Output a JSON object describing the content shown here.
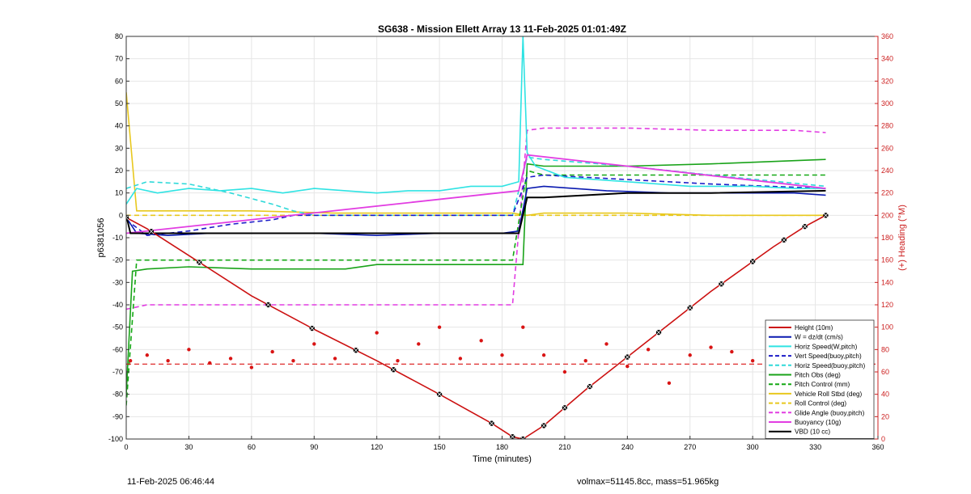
{
  "chart_data": {
    "type": "line",
    "title": "SG638 - Mission Ellett Array 13 11-Feb-2025 01:01:49Z",
    "xlabel": "Time (minutes)",
    "ylabel": "p6381056",
    "y2label": "(+) Heading (°M)",
    "xlim": [
      0,
      360
    ],
    "ylim": [
      -100,
      80
    ],
    "y2lim": [
      0,
      360
    ],
    "xticks": [
      0,
      30,
      60,
      90,
      120,
      150,
      180,
      210,
      240,
      270,
      300,
      330,
      360
    ],
    "yticks": [
      80,
      70,
      60,
      50,
      40,
      30,
      20,
      10,
      0,
      -10,
      -20,
      -30,
      -40,
      -50,
      -60,
      -70,
      -80,
      -90,
      -100
    ],
    "y2ticks": [
      360,
      340,
      320,
      300,
      280,
      260,
      240,
      220,
      200,
      180,
      160,
      140,
      120,
      100,
      80,
      60,
      40,
      20,
      0
    ],
    "grid": true,
    "legend_position": "bottom-right",
    "colors": {
      "height": "#cc1111",
      "w": "#0a1ab0",
      "horiz_speed_w": "#2fe3e3",
      "vert_speed": "#1c1cc8",
      "horiz_speed_buoy": "#2fd9d9",
      "pitch": "#19a319",
      "pitch_control": "#14a814",
      "roll": "#e8c81e",
      "roll_control": "#e8c81e",
      "glide_angle": "#e23de2",
      "buoyancy": "#e23de2",
      "vbd": "#000000",
      "heading": "#d91414"
    },
    "series": [
      {
        "name": "Height (10m)",
        "key": "height",
        "x": [
          0,
          10,
          30,
          60,
          90,
          120,
          150,
          175,
          185,
          190,
          200,
          220,
          250,
          280,
          310,
          325,
          335
        ],
        "y": [
          -1,
          -6,
          -18,
          -36,
          -51,
          -65,
          -80,
          -93,
          -99,
          -100,
          -94,
          -78,
          -56,
          -34,
          -14,
          -5,
          0
        ]
      },
      {
        "name": "W = dz/dt (cm/s)",
        "key": "w",
        "x": [
          0,
          5,
          20,
          40,
          60,
          90,
          120,
          150,
          180,
          188,
          192,
          200,
          230,
          260,
          290,
          320,
          335
        ],
        "y": [
          -1,
          -8,
          -9,
          -8,
          -8,
          -8,
          -9,
          -8,
          -8,
          -7,
          12,
          13,
          11,
          10,
          10,
          10,
          9
        ]
      },
      {
        "name": "Horiz Speed(W,pitch)",
        "key": "horiz_speed_w",
        "x": [
          0,
          5,
          15,
          30,
          45,
          60,
          75,
          90,
          105,
          120,
          135,
          150,
          165,
          180,
          188,
          190,
          192,
          196,
          210,
          240,
          270,
          300,
          320,
          335
        ],
        "y": [
          5,
          12,
          10,
          12,
          11,
          12,
          10,
          12,
          11,
          10,
          11,
          11,
          13,
          13,
          15,
          80,
          28,
          22,
          17,
          15,
          13,
          13,
          12,
          12
        ]
      },
      {
        "name": "Vert Speed(buoy,pitch)",
        "key": "vert_speed",
        "x": [
          0,
          10,
          30,
          50,
          70,
          80,
          90,
          120,
          150,
          185,
          192,
          200,
          240,
          280,
          335
        ],
        "y": [
          -2,
          -9,
          -7,
          -4,
          -2,
          0,
          0,
          0,
          0,
          0,
          17,
          18,
          16,
          14,
          12
        ]
      },
      {
        "name": "Horiz Speed(buoy,pitch)",
        "key": "horiz_speed_buoy",
        "x": [
          0,
          10,
          30,
          50,
          70,
          80,
          90,
          120,
          150,
          185,
          192,
          200,
          240,
          280,
          335
        ],
        "y": [
          12,
          15,
          14,
          10,
          5,
          2,
          0,
          0,
          0,
          0,
          26,
          25,
          22,
          18,
          13
        ]
      },
      {
        "name": "Pitch Obs (deg)",
        "key": "pitch",
        "x": [
          0,
          3,
          10,
          30,
          60,
          90,
          105,
          120,
          150,
          180,
          190,
          192,
          200,
          240,
          280,
          335
        ],
        "y": [
          -80,
          -25,
          -24,
          -23,
          -24,
          -24,
          -24,
          -22,
          -22,
          -22,
          -22,
          23,
          22,
          22,
          23,
          25
        ]
      },
      {
        "name": "Pitch Control (mm)",
        "key": "pitch_control",
        "x": [
          0,
          5,
          20,
          60,
          100,
          130,
          185,
          192,
          200,
          240,
          280,
          335
        ],
        "y": [
          -85,
          -20,
          -20,
          -20,
          -20,
          -20,
          -20,
          20,
          18,
          18,
          18,
          18
        ]
      },
      {
        "name": "Vehicle Roll Stbd (deg)",
        "key": "roll",
        "x": [
          0,
          5,
          20,
          60,
          100,
          140,
          185,
          192,
          200,
          240,
          280,
          335
        ],
        "y": [
          55,
          2,
          2,
          2,
          1,
          1,
          1,
          0,
          1,
          1,
          0,
          0
        ]
      },
      {
        "name": "Roll Control (deg)",
        "key": "roll_control",
        "x": [
          0,
          5,
          20,
          60,
          100,
          140,
          185,
          192,
          200,
          240,
          280,
          335
        ],
        "y": [
          0,
          0,
          0,
          0,
          0,
          0,
          0,
          0,
          0,
          0,
          0,
          0
        ]
      },
      {
        "name": "Glide Angle (buoy,pitch)",
        "key": "glide_angle",
        "x": [
          0,
          10,
          30,
          60,
          90,
          120,
          150,
          185,
          192,
          200,
          240,
          280,
          320,
          335
        ],
        "y": [
          -42,
          -40,
          -40,
          -40,
          -40,
          -40,
          -40,
          -40,
          38,
          39,
          39,
          38,
          38,
          37
        ]
      },
      {
        "name": "Buoyancy (10g)",
        "key": "buoyancy",
        "x": [
          0,
          188,
          192,
          335
        ],
        "y": [
          -8,
          11,
          27,
          12
        ]
      },
      {
        "name": "VBD (10 cc)",
        "key": "vbd",
        "x": [
          0,
          2,
          30,
          60,
          90,
          120,
          150,
          188,
          192,
          200,
          240,
          280,
          335
        ],
        "y": [
          0,
          -8,
          -8,
          -8,
          -8,
          -8,
          -8,
          -8,
          8,
          8,
          10,
          10,
          11
        ]
      },
      {
        "key": "heading",
        "axis": "y2",
        "x": [
          2,
          10,
          20,
          30,
          40,
          50,
          60,
          70,
          80,
          90,
          100,
          110,
          120,
          130,
          140,
          150,
          160,
          170,
          180,
          190,
          200,
          210,
          220,
          230,
          240,
          250,
          260,
          270,
          280,
          290,
          300,
          310,
          320,
          330
        ],
        "y": [
          70,
          75,
          70,
          80,
          68,
          72,
          64,
          78,
          70,
          85,
          72,
          80,
          95,
          70,
          85,
          100,
          72,
          88,
          75,
          100,
          75,
          60,
          70,
          85,
          65,
          80,
          50,
          75,
          82,
          78,
          70,
          85,
          75,
          70
        ]
      }
    ],
    "reference_lines": [
      {
        "key": "heading",
        "axis": "y2",
        "value": 67,
        "style": "dashed"
      }
    ],
    "marked_points_x": [
      0,
      12,
      35,
      68,
      89,
      110,
      128,
      150,
      175,
      185,
      190,
      200,
      210,
      222,
      240,
      255,
      270,
      285,
      300,
      315,
      325,
      335
    ]
  },
  "footer": {
    "left": "11-Feb-2025 06:46:44",
    "right": "volmax=51145.8cc, mass=51.965kg"
  }
}
